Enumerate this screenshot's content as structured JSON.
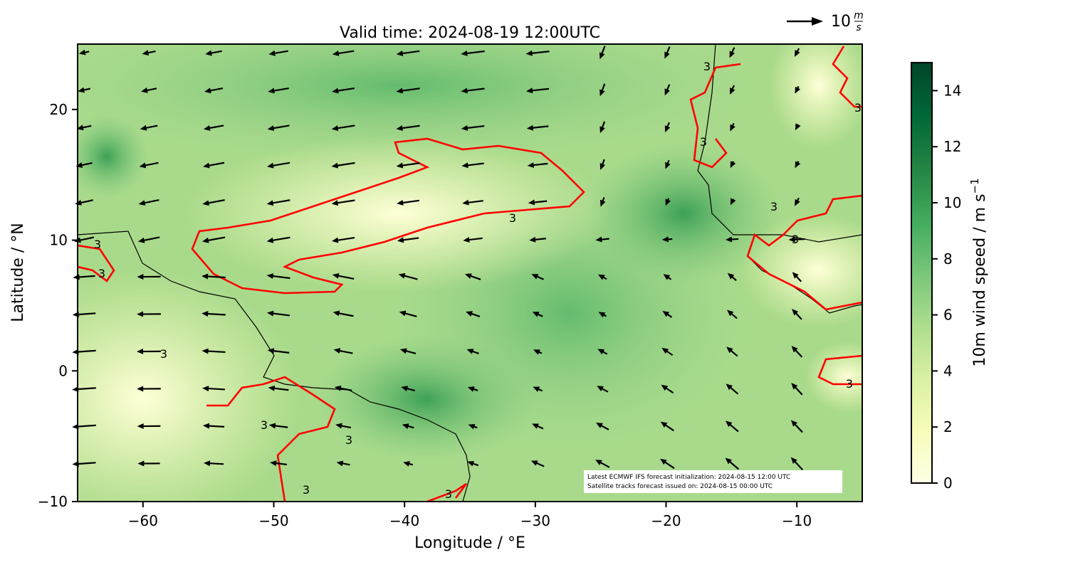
{
  "chart_data": {
    "type": "map",
    "title": "Valid time: 2024-08-19 12:00UTC",
    "x_label": "Longitude / °E",
    "y_label": "Latitude / °N",
    "xlim": [
      -65,
      -5
    ],
    "ylim": [
      -10,
      25
    ],
    "xticks": [
      {
        "value": -60,
        "label": "−60"
      },
      {
        "value": -50,
        "label": "−50"
      },
      {
        "value": -40,
        "label": "−40"
      },
      {
        "value": -30,
        "label": "−30"
      },
      {
        "value": -20,
        "label": "−20"
      },
      {
        "value": -10,
        "label": "−10"
      }
    ],
    "yticks": [
      {
        "value": -10,
        "label": "−10"
      },
      0,
      10,
      20
    ],
    "contour_level": 3,
    "contour_color": "#ff0000",
    "colorbar": {
      "label": "10m wind speed / m s",
      "label_exponent": "−1",
      "lim": [
        0,
        15
      ],
      "ticks": [
        0,
        2,
        4,
        6,
        8,
        10,
        12,
        14
      ],
      "colors": [
        "#ffffe5",
        "#f7fcb9",
        "#d9f0a3",
        "#addd8e",
        "#78c679",
        "#41ab5d",
        "#238443",
        "#006837",
        "#004529"
      ]
    },
    "quiver_key": {
      "value": 10,
      "unit_numerator": "m",
      "unit_denominator": "s"
    },
    "annotations": [
      "Latest ECMWF IFS forecast initialization: 2024-08-15 12:00 UTC",
      "Satellite tracks forecast issued on: 2024-08-15 00:00 UTC"
    ]
  }
}
